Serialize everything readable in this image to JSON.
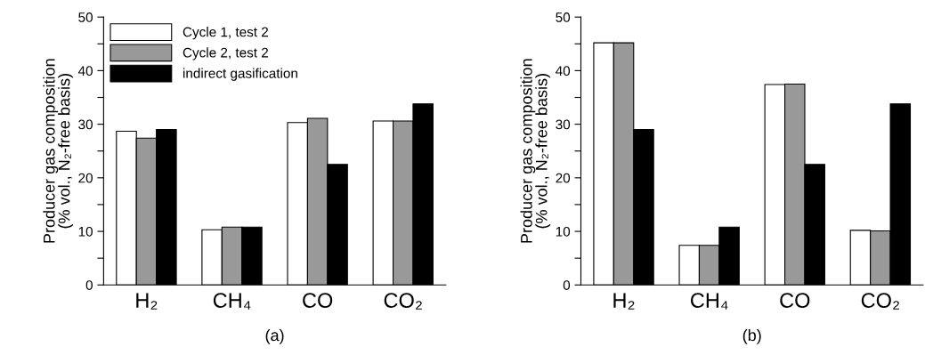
{
  "chart_data": [
    {
      "type": "bar",
      "categories": [
        "H₂",
        "CH₄",
        "CO",
        "CO₂"
      ],
      "ylabel": "Producer gas composition\n(% vol., N₂-free basis)",
      "series": [
        {
          "name": "Cycle 1, test 2",
          "color": "#ffffff",
          "values": [
            28.7,
            10.3,
            30.3,
            30.6
          ]
        },
        {
          "name": "Cycle 2, test 2",
          "color": "#999999",
          "values": [
            27.4,
            10.8,
            31.1,
            30.6
          ]
        },
        {
          "name": "indirect gasification",
          "color": "#000000",
          "values": [
            29.0,
            10.8,
            22.5,
            33.8
          ]
        }
      ],
      "ylim": [
        0,
        50
      ],
      "yticks": [
        0,
        {
          "value": 5,
          "label": null
        },
        10,
        {
          "value": 15,
          "label": null
        },
        20,
        {
          "value": 25,
          "label": null
        },
        30,
        {
          "value": 35,
          "label": null
        },
        40,
        {
          "value": 45,
          "label": null
        },
        50
      ],
      "legend": "top left",
      "grid": false,
      "annotations": [
        "(a)"
      ]
    },
    {
      "type": "bar",
      "categories": [
        "H₂",
        "CH₄",
        "CO",
        "CO₂"
      ],
      "ylabel": "Producer gas composition\n(% vol., N₂-free basis)",
      "series": [
        {
          "color": "#ffffff",
          "values": [
            45.2,
            7.4,
            37.4,
            10.2
          ]
        },
        {
          "color": "#999999",
          "values": [
            45.2,
            7.4,
            37.5,
            10.1
          ]
        },
        {
          "color": "#000000",
          "values": [
            29.0,
            10.8,
            22.5,
            33.8
          ]
        }
      ],
      "ylim": [
        0,
        50
      ],
      "yticks": [
        0,
        {
          "value": 5,
          "label": null
        },
        10,
        {
          "value": 15,
          "label": null
        },
        20,
        {
          "value": 25,
          "label": null
        },
        30,
        {
          "value": 35,
          "label": null
        },
        40,
        {
          "value": 45,
          "label": null
        },
        50
      ],
      "grid": false,
      "annotations": [
        "(b)"
      ]
    }
  ]
}
